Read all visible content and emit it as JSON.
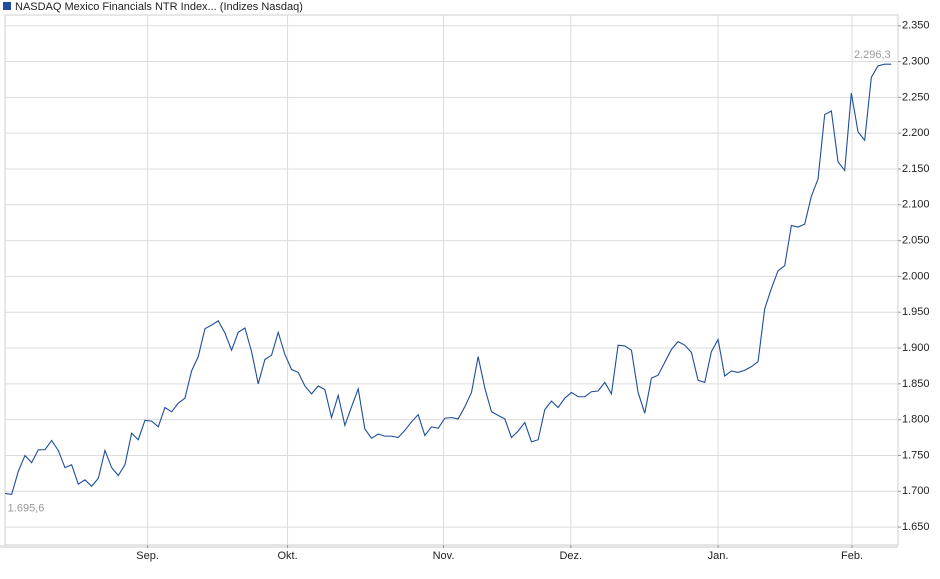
{
  "chart_data": {
    "type": "line",
    "series": [
      {
        "name": "NASDAQ Mexico Financials NTR Index... (Indizes Nasdaq)",
        "color": "#1f4e9a",
        "values": [
          1697,
          1695.6,
          1728,
          1750,
          1740,
          1758,
          1758,
          1771,
          1757,
          1733,
          1737,
          1710,
          1716,
          1707,
          1718,
          1757,
          1733,
          1722,
          1737,
          1781,
          1772,
          1799,
          1798,
          1790,
          1817,
          1811,
          1823,
          1830,
          1868,
          1888,
          1927,
          1932,
          1938,
          1921,
          1897,
          1922,
          1928,
          1895,
          1850,
          1884,
          1890,
          1922,
          1891,
          1870,
          1866,
          1847,
          1836,
          1847,
          1842,
          1803,
          1834,
          1792,
          1818,
          1843,
          1787,
          1774,
          1780,
          1777,
          1777,
          1775,
          1785,
          1797,
          1807,
          1778,
          1790,
          1788,
          1802,
          1803,
          1801,
          1818,
          1838,
          1888,
          1844,
          1811,
          1806,
          1801,
          1775,
          1784,
          1796,
          1769,
          1772,
          1814,
          1826,
          1817,
          1830,
          1838,
          1832,
          1832,
          1839,
          1840,
          1852,
          1836,
          1904,
          1903,
          1897,
          1838,
          1809,
          1858,
          1862,
          1880,
          1898,
          1909,
          1904,
          1894,
          1855,
          1852,
          1895,
          1912,
          1861,
          1868,
          1866,
          1869,
          1874,
          1881,
          1955,
          1983,
          2008,
          2015,
          2071,
          2069,
          2073,
          2112,
          2136,
          2226,
          2231,
          2160,
          2148,
          2256,
          2202,
          2190,
          2278,
          2294,
          2296.3,
          2296.3
        ]
      }
    ],
    "min_label": "1.695,6",
    "max_label": "2.296,3",
    "xlim": [
      0,
      134
    ],
    "xticks": [
      {
        "value": 21.4,
        "label": "Sep."
      },
      {
        "value": 42.4,
        "label": "Okt."
      },
      {
        "value": 65.8,
        "label": "Nov."
      },
      {
        "value": 84.9,
        "label": "Dez."
      },
      {
        "value": 107.0,
        "label": "Jan."
      },
      {
        "value": 127.1,
        "label": "Feb."
      }
    ],
    "ylim": [
      1625,
      2365
    ],
    "yticks": [
      {
        "value": 1650,
        "label": "1.650"
      },
      {
        "value": 1700,
        "label": "1.700"
      },
      {
        "value": 1750,
        "label": "1.750"
      },
      {
        "value": 1800,
        "label": "1.800"
      },
      {
        "value": 1850,
        "label": "1.850"
      },
      {
        "value": 1900,
        "label": "1.900"
      },
      {
        "value": 1950,
        "label": "1.950"
      },
      {
        "value": 2000,
        "label": "2.000"
      },
      {
        "value": 2050,
        "label": "2.050"
      },
      {
        "value": 2100,
        "label": "2.100"
      },
      {
        "value": 2150,
        "label": "2.150"
      },
      {
        "value": 2200,
        "label": "2.200"
      },
      {
        "value": 2250,
        "label": "2.250"
      },
      {
        "value": 2300,
        "label": "2.300"
      },
      {
        "value": 2350,
        "label": "2.350"
      }
    ],
    "grid": true
  }
}
